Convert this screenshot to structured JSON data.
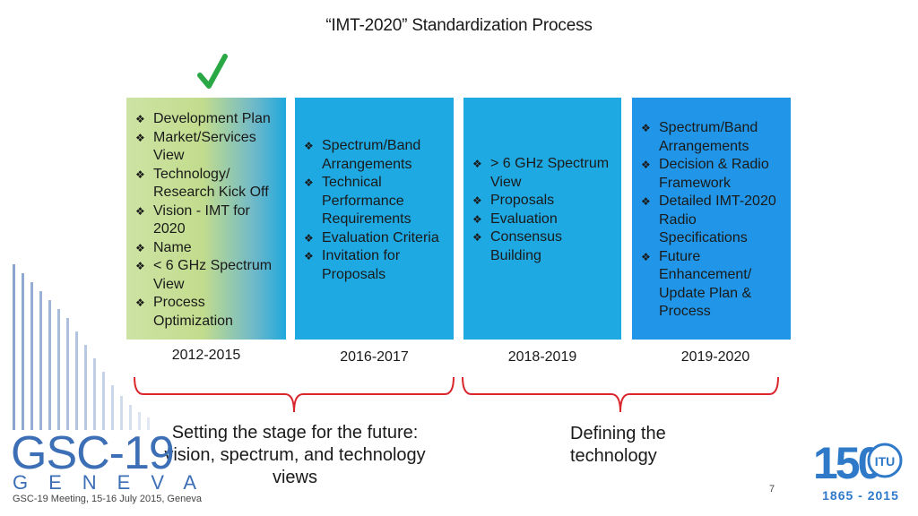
{
  "title": "“IMT-2020” Standardization Process",
  "phases": [
    {
      "items": [
        "Development Plan",
        "Market/Services View",
        "Technology/ Research Kick Off",
        "Vision - IMT for 2020",
        "Name",
        "< 6 GHz Spectrum View",
        "Process Optimization"
      ],
      "years": "2012-2015",
      "completed": true
    },
    {
      "items": [
        "Spectrum/Band Arrangements",
        "Technical Performance Requirements",
        "Evaluation Criteria",
        "Invitation for Proposals"
      ],
      "years": "2016-2017"
    },
    {
      "items": [
        "> 6 GHz Spectrum View",
        "Proposals",
        "Evaluation",
        "Consensus Building"
      ],
      "years": "2018-2019"
    },
    {
      "items": [
        "Spectrum/Band Arrangements",
        "Decision & Radio Framework",
        "Detailed IMT-2020 Radio Specifications",
        "Future Enhancement/ Update Plan & Process"
      ],
      "years": "2019-2020"
    }
  ],
  "captions": {
    "left": "Setting the stage for the future: vision, spectrum, and technology views",
    "right": "Defining the technology"
  },
  "page_number": "7",
  "footer": "GSC-19 Meeting, 15-16 July 2015, Geneva",
  "logos": {
    "gsc": "GSC-19",
    "geneva": "GENEVA",
    "itu_number": "150",
    "itu_label": "ITU",
    "itu_years": "1865 - 2015"
  },
  "colors": {
    "phase_blue": "#1fa9e3",
    "phase_green": "#c2dc8d",
    "brace_red": "#d9262c",
    "check_green": "#2aa845",
    "logo_blue": "#3c6fb5"
  }
}
